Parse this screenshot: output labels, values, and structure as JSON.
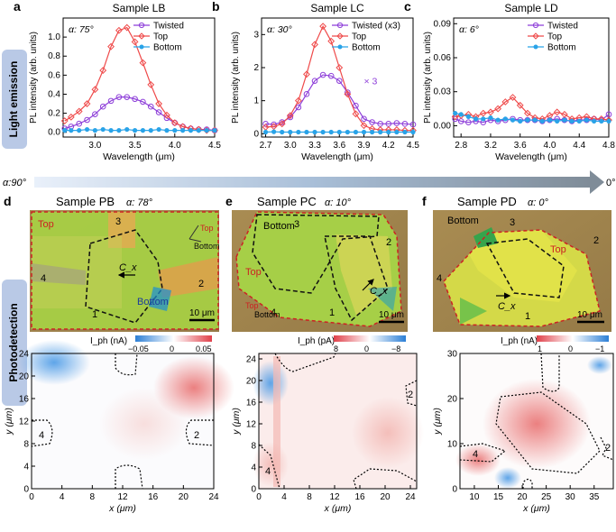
{
  "row_labels": {
    "light_emission": "Light emission",
    "photodetection": "Photodetection"
  },
  "alpha_scale": {
    "left": "α:90°",
    "right": "0°"
  },
  "chart_data": [
    {
      "panel": "a",
      "type": "line",
      "title": "Sample LB",
      "annotation": "α: 75°",
      "xlabel": "Wavelength (μm)",
      "ylabel": "PL intensity (arb. units)",
      "xlim": [
        2.6,
        4.5
      ],
      "ylim": [
        -0.05,
        1.2
      ],
      "xticks": [
        3.0,
        3.5,
        4.0,
        4.5
      ],
      "xtick_labels": [
        "3.0",
        "3.5",
        "4.0",
        "4.5"
      ],
      "yticks": [
        0.0,
        0.2,
        0.4,
        0.6,
        0.8,
        1.0
      ],
      "ytick_labels": [
        "0.0",
        "0.2",
        "0.4",
        "0.6",
        "0.8",
        "1.0"
      ],
      "legend": {
        "placement": "top-right"
      },
      "series": [
        {
          "name": "Twisted",
          "color": "#8e3fd9",
          "marker": "circle",
          "x": [
            2.62,
            2.7,
            2.8,
            2.9,
            3.0,
            3.1,
            3.2,
            3.3,
            3.4,
            3.5,
            3.6,
            3.7,
            3.8,
            3.9,
            4.0,
            4.1,
            4.2,
            4.3,
            4.4,
            4.5
          ],
          "y": [
            0.04,
            0.06,
            0.09,
            0.13,
            0.19,
            0.27,
            0.33,
            0.37,
            0.37,
            0.35,
            0.32,
            0.27,
            0.21,
            0.15,
            0.1,
            0.06,
            0.04,
            0.03,
            0.03,
            0.02
          ]
        },
        {
          "name": "Top",
          "color": "#ef4a4a",
          "marker": "diamond",
          "x": [
            2.62,
            2.7,
            2.8,
            2.9,
            3.0,
            3.1,
            3.2,
            3.3,
            3.4,
            3.5,
            3.6,
            3.7,
            3.8,
            3.9,
            4.0,
            4.1,
            4.2,
            4.3,
            4.4,
            4.5
          ],
          "y": [
            0.12,
            0.16,
            0.22,
            0.3,
            0.45,
            0.65,
            0.9,
            1.07,
            1.1,
            0.95,
            0.73,
            0.5,
            0.3,
            0.18,
            0.1,
            0.06,
            0.04,
            0.03,
            0.02,
            0.02
          ]
        },
        {
          "name": "Bottom",
          "color": "#29a3e8",
          "marker": "circle",
          "x": [
            2.62,
            2.7,
            2.8,
            2.9,
            3.0,
            3.1,
            3.2,
            3.3,
            3.4,
            3.5,
            3.6,
            3.7,
            3.8,
            3.9,
            4.0,
            4.1,
            4.2,
            4.3,
            4.4,
            4.5
          ],
          "y": [
            0.02,
            0.02,
            0.02,
            0.03,
            0.02,
            0.03,
            0.02,
            0.02,
            0.03,
            0.02,
            0.02,
            0.02,
            0.03,
            0.02,
            0.02,
            0.02,
            0.02,
            0.02,
            0.02,
            0.02
          ]
        }
      ]
    },
    {
      "panel": "b",
      "type": "line",
      "title": "Sample LC",
      "annotation": "α: 30°",
      "note": "× 3",
      "xlabel": "Wavelength (μm)",
      "ylabel": "PL intensity (arb. units)",
      "xlim": [
        2.65,
        4.5
      ],
      "ylim": [
        -0.1,
        3.5
      ],
      "xticks": [
        2.7,
        3.0,
        3.3,
        3.6,
        3.9,
        4.2,
        4.5
      ],
      "xtick_labels": [
        "2.7",
        "3.0",
        "3.3",
        "3.6",
        "3.9",
        "4.2",
        "4.5"
      ],
      "yticks": [
        0,
        1,
        2,
        3
      ],
      "ytick_labels": [
        "0",
        "1",
        "2",
        "3"
      ],
      "legend": {
        "placement": "top-right"
      },
      "series": [
        {
          "name": "Twisted (x3)",
          "color": "#8e3fd9",
          "marker": "circle",
          "x": [
            2.7,
            2.8,
            2.9,
            3.0,
            3.1,
            3.2,
            3.3,
            3.4,
            3.5,
            3.6,
            3.7,
            3.8,
            3.9,
            4.0,
            4.1,
            4.2,
            4.3,
            4.4,
            4.5
          ],
          "y": [
            0.3,
            0.28,
            0.35,
            0.5,
            0.8,
            1.2,
            1.6,
            1.78,
            1.75,
            1.6,
            1.25,
            0.85,
            0.45,
            0.35,
            0.3,
            0.3,
            0.32,
            0.3,
            0.28
          ]
        },
        {
          "name": "Top",
          "color": "#ef4a4a",
          "marker": "diamond",
          "x": [
            2.7,
            2.8,
            2.9,
            3.0,
            3.1,
            3.2,
            3.3,
            3.4,
            3.5,
            3.6,
            3.7,
            3.8,
            3.9,
            4.0,
            4.1,
            4.2,
            4.3,
            4.4,
            4.5
          ],
          "y": [
            0.2,
            0.22,
            0.3,
            0.55,
            1.0,
            1.8,
            2.7,
            3.25,
            2.8,
            2.0,
            1.2,
            0.6,
            0.25,
            0.15,
            0.12,
            0.12,
            0.12,
            0.1,
            0.1
          ]
        },
        {
          "name": "Bottom",
          "color": "#29a3e8",
          "marker": "circle",
          "x": [
            2.7,
            2.8,
            2.9,
            3.0,
            3.1,
            3.2,
            3.3,
            3.4,
            3.5,
            3.6,
            3.7,
            3.8,
            3.9,
            4.0,
            4.1,
            4.2,
            4.3,
            4.4,
            4.5
          ],
          "y": [
            0.05,
            0.06,
            0.05,
            0.05,
            0.05,
            0.05,
            0.05,
            0.05,
            0.05,
            0.05,
            0.05,
            0.05,
            0.05,
            0.05,
            0.05,
            0.05,
            0.05,
            0.05,
            0.05
          ]
        }
      ]
    },
    {
      "panel": "c",
      "type": "line",
      "title": "Sample LD",
      "annotation": "α: 6°",
      "xlabel": "Wavelength (μm)",
      "ylabel": "PL intensity (arb. units)",
      "xlim": [
        2.7,
        4.8
      ],
      "ylim": [
        -0.01,
        0.095
      ],
      "xticks": [
        2.8,
        3.2,
        3.6,
        4.0,
        4.4,
        4.8
      ],
      "xtick_labels": [
        "2.8",
        "3.2",
        "3.6",
        "4.0",
        "4.4",
        "4.8"
      ],
      "yticks": [
        0.0,
        0.03,
        0.06,
        0.09
      ],
      "ytick_labels": [
        "0.00",
        "0.03",
        "0.06",
        "0.09"
      ],
      "legend": {
        "placement": "top-right"
      },
      "series": [
        {
          "name": "Twisted",
          "color": "#8e3fd9",
          "marker": "circle",
          "x": [
            2.72,
            2.8,
            2.9,
            3.0,
            3.1,
            3.2,
            3.3,
            3.4,
            3.5,
            3.6,
            3.7,
            3.8,
            3.9,
            4.0,
            4.1,
            4.2,
            4.3,
            4.4,
            4.5,
            4.6,
            4.7,
            4.8
          ],
          "y": [
            0.006,
            0.004,
            0.003,
            0.004,
            0.003,
            0.005,
            0.004,
            0.005,
            0.006,
            0.005,
            0.005,
            0.005,
            0.004,
            0.005,
            0.006,
            0.005,
            0.004,
            0.005,
            0.005,
            0.006,
            0.005,
            0.01
          ]
        },
        {
          "name": "Top",
          "color": "#ef4a4a",
          "marker": "diamond",
          "x": [
            2.72,
            2.8,
            2.9,
            3.0,
            3.1,
            3.2,
            3.3,
            3.4,
            3.5,
            3.6,
            3.7,
            3.8,
            3.9,
            4.0,
            4.1,
            4.2,
            4.3,
            4.4,
            4.5,
            4.6,
            4.7,
            4.8
          ],
          "y": [
            0.008,
            0.009,
            0.01,
            0.008,
            0.011,
            0.012,
            0.015,
            0.021,
            0.025,
            0.018,
            0.011,
            0.007,
            0.006,
            0.009,
            0.012,
            0.01,
            0.006,
            0.007,
            0.008,
            0.006,
            0.006,
            0.005
          ]
        },
        {
          "name": "Bottom",
          "color": "#29a3e8",
          "marker": "circle",
          "x": [
            2.72,
            2.8,
            2.9,
            3.0,
            3.1,
            3.2,
            3.3,
            3.4,
            3.5,
            3.6,
            3.7,
            3.8,
            3.9,
            4.0,
            4.1,
            4.2,
            4.3,
            4.4,
            4.5,
            4.6,
            4.7,
            4.8
          ],
          "y": [
            0.011,
            0.01,
            0.008,
            0.006,
            0.006,
            0.007,
            0.005,
            0.006,
            0.005,
            0.004,
            0.005,
            0.005,
            0.004,
            0.005,
            0.004,
            0.005,
            0.004,
            0.004,
            0.005,
            0.004,
            0.004,
            0.004
          ]
        }
      ]
    },
    {
      "panel": "d",
      "type": "heatmap",
      "title": "Sample PB",
      "annotation": "α: 78°",
      "xlabel": "x (μm)",
      "ylabel": "y (μm)",
      "xlim": [
        0,
        24
      ],
      "ylim": [
        0,
        24
      ],
      "xticks": [
        0,
        4,
        8,
        12,
        16,
        20,
        24
      ],
      "yticks": [
        0,
        4,
        8,
        12,
        16,
        20,
        24
      ],
      "colorbar": {
        "label": "I_ph (nA)",
        "min": -0.05,
        "max": 0.05,
        "tick_labels": [
          "−0.05",
          "0",
          "0.05"
        ],
        "low_color": "#2c7fd6",
        "high_color": "#e0404a"
      },
      "electrodes": [
        "1",
        "2",
        "3",
        "4"
      ],
      "image_labels": [
        "Top",
        "Bottom",
        "Top",
        "Bottom",
        "C_x",
        "10 μm",
        "1",
        "2",
        "3",
        "4"
      ],
      "map_labels": [
        "2",
        "4"
      ]
    },
    {
      "panel": "e",
      "type": "heatmap",
      "title": "Sample PC",
      "annotation": "α: 10°",
      "xlabel": "x (μm)",
      "ylabel": "y (μm)",
      "xlim": [
        0,
        25
      ],
      "ylim": [
        0,
        25
      ],
      "xticks": [
        0,
        4,
        8,
        12,
        16,
        20,
        24
      ],
      "yticks": [
        0,
        4,
        8,
        12,
        16,
        20,
        24
      ],
      "colorbar": {
        "label": "I_ph (pA)",
        "min": -8,
        "max": 8,
        "tick_labels": [
          "8",
          "0",
          "−8"
        ],
        "low_color": "#e0404a",
        "high_color": "#2c7fd6"
      },
      "image_labels": [
        "Bottom",
        "Top",
        "Top",
        "Bottom",
        "C_x",
        "10 μm",
        "1",
        "2",
        "3",
        "4"
      ],
      "map_labels": [
        "2",
        "4"
      ]
    },
    {
      "panel": "f",
      "type": "heatmap",
      "title": "Sample PD",
      "annotation": "α: 0°",
      "xlabel": "x (μm)",
      "ylabel": "y (μm)",
      "xlim": [
        7,
        39
      ],
      "ylim": [
        0,
        30
      ],
      "xticks": [
        10,
        15,
        20,
        25,
        30,
        35
      ],
      "yticks": [
        0,
        10,
        20,
        30
      ],
      "colorbar": {
        "label": "I_ph (nA)",
        "min": -1,
        "max": 1,
        "tick_labels": [
          "1",
          "0",
          "−1"
        ],
        "low_color": "#e0404a",
        "high_color": "#2c7fd6"
      },
      "image_labels": [
        "Bottom",
        "Top",
        "C_x",
        "10 μm",
        "1",
        "2",
        "3",
        "4"
      ],
      "map_labels": [
        "2",
        "4"
      ]
    }
  ]
}
